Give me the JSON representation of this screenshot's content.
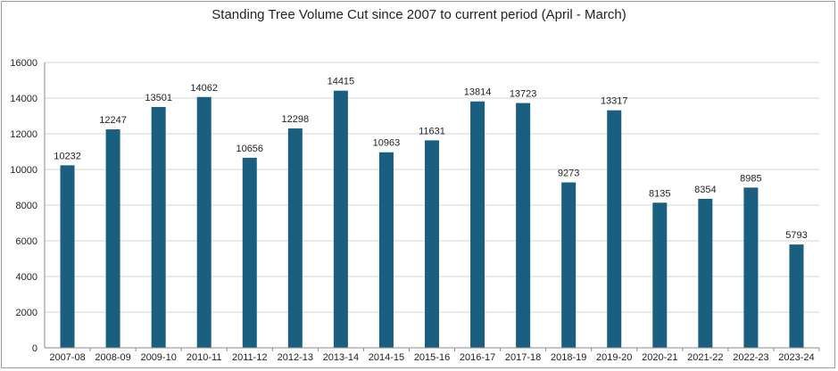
{
  "chart_data": {
    "type": "bar",
    "title": "Standing Tree Volume Cut since 2007 to current period (April - March)",
    "xlabel": "",
    "ylabel": "",
    "categories": [
      "2007-08",
      "2008-09",
      "2009-10",
      "2010-11",
      "2011-12",
      "2012-13",
      "2013-14",
      "2014-15",
      "2015-16",
      "2016-17",
      "2017-18",
      "2018-19",
      "2019-20",
      "2020-21",
      "2021-22",
      "2022-23",
      "2023-24"
    ],
    "values": [
      10232,
      12247,
      13501,
      14062,
      10656,
      12298,
      14415,
      10963,
      11631,
      13814,
      13723,
      9273,
      13317,
      8135,
      8354,
      8985,
      5793
    ],
    "data_labels": [
      "10232",
      "12247",
      "13501",
      "14062",
      "10656",
      "12298",
      "14415",
      "10963",
      "11631",
      "13814",
      "13723",
      "9273",
      "13317",
      "8135",
      "8354",
      "8985",
      "5793"
    ],
    "ylim": [
      0,
      16000
    ],
    "yticks": [
      "0",
      "2000",
      "4000",
      "6000",
      "8000",
      "10000",
      "12000",
      "14000",
      "16000"
    ],
    "ytick_values": [
      0,
      2000,
      4000,
      6000,
      8000,
      10000,
      12000,
      14000,
      16000
    ],
    "grid": true,
    "legend": "none",
    "bar_color": "#1a5f80",
    "grid_color": "#d6d6d6",
    "axis_color": "#8a8a8a"
  }
}
